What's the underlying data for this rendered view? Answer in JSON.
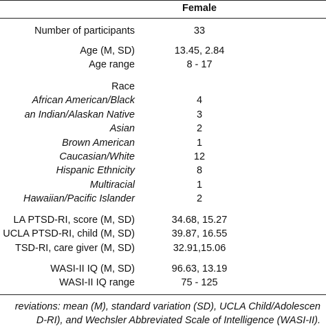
{
  "table": {
    "header": "Female",
    "rows": [
      {
        "label": "Number of participants",
        "value": "33"
      },
      {
        "label": "Age (M, SD)",
        "value": "13.45, 2.84"
      },
      {
        "label": "Age range",
        "value": "8 - 17"
      },
      {
        "label": "Race"
      },
      {
        "label": "African American/Black",
        "value": "4",
        "italic": true
      },
      {
        "label": "an Indian/Alaskan Native",
        "value": "3",
        "italic": true
      },
      {
        "label": "Asian",
        "value": "2",
        "italic": true
      },
      {
        "label": "Brown American",
        "value": "1",
        "italic": true
      },
      {
        "label": "Caucasian/White",
        "value": "12",
        "italic": true
      },
      {
        "label": "Hispanic Ethnicity",
        "value": "8",
        "italic": true
      },
      {
        "label": "Multiracial",
        "value": "1",
        "italic": true
      },
      {
        "label": "Hawaiian/Pacific Islander",
        "value": "2",
        "italic": true
      },
      {
        "label": "LA PTSD-RI, score (M, SD)",
        "value": "34.68, 15.27"
      },
      {
        "label": "UCLA PTSD-RI, child (M, SD)",
        "value": "39.87, 16.55"
      },
      {
        "label": "TSD-RI, care giver (M, SD)",
        "value": "32.91,15.06"
      },
      {
        "label": "WASI-II IQ (M, SD)",
        "value": "96.63, 13.19"
      },
      {
        "label": "WASI-II IQ range",
        "value": "75 - 125"
      }
    ],
    "footnote": [
      "reviations: mean (M), standard variation (SD), UCLA Child/Adolescen",
      "D-RI), and Wechsler Abbreviated Scale of Intelligence (WASI-II)."
    ]
  }
}
